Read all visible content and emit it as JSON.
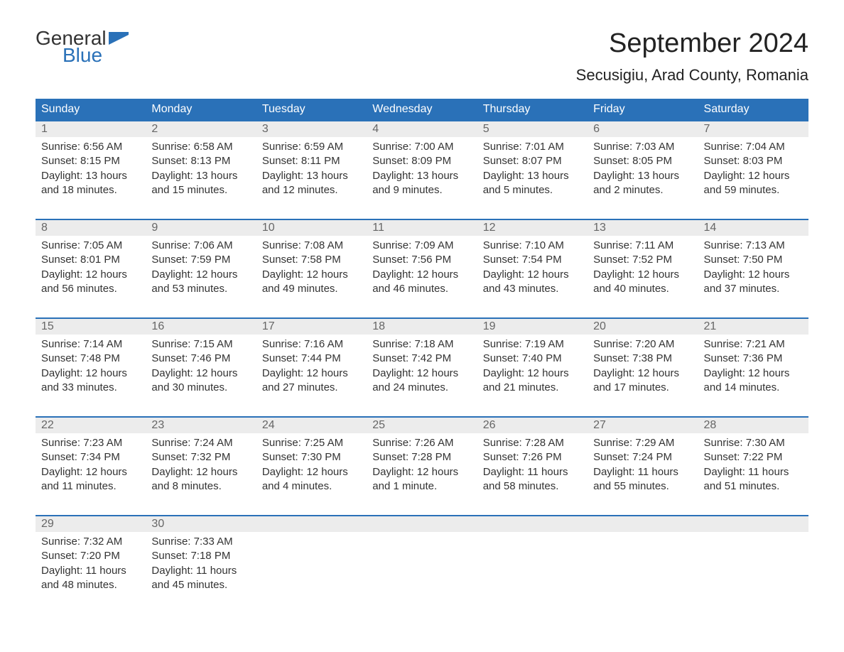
{
  "logo": {
    "general": "General",
    "blue": "Blue"
  },
  "title": "September 2024",
  "location": "Secusigiu, Arad County, Romania",
  "colors": {
    "header_bg": "#2a71b8",
    "header_text": "#ffffff",
    "daynum_bg": "#ececec",
    "daynum_text": "#666666",
    "body_text": "#333333",
    "week_border": "#2a71b8",
    "logo_blue": "#2a71b8"
  },
  "day_headers": [
    "Sunday",
    "Monday",
    "Tuesday",
    "Wednesday",
    "Thursday",
    "Friday",
    "Saturday"
  ],
  "weeks": [
    [
      {
        "n": "1",
        "sr": "6:56 AM",
        "ss": "8:15 PM",
        "dl": "13 hours and 18 minutes."
      },
      {
        "n": "2",
        "sr": "6:58 AM",
        "ss": "8:13 PM",
        "dl": "13 hours and 15 minutes."
      },
      {
        "n": "3",
        "sr": "6:59 AM",
        "ss": "8:11 PM",
        "dl": "13 hours and 12 minutes."
      },
      {
        "n": "4",
        "sr": "7:00 AM",
        "ss": "8:09 PM",
        "dl": "13 hours and 9 minutes."
      },
      {
        "n": "5",
        "sr": "7:01 AM",
        "ss": "8:07 PM",
        "dl": "13 hours and 5 minutes."
      },
      {
        "n": "6",
        "sr": "7:03 AM",
        "ss": "8:05 PM",
        "dl": "13 hours and 2 minutes."
      },
      {
        "n": "7",
        "sr": "7:04 AM",
        "ss": "8:03 PM",
        "dl": "12 hours and 59 minutes."
      }
    ],
    [
      {
        "n": "8",
        "sr": "7:05 AM",
        "ss": "8:01 PM",
        "dl": "12 hours and 56 minutes."
      },
      {
        "n": "9",
        "sr": "7:06 AM",
        "ss": "7:59 PM",
        "dl": "12 hours and 53 minutes."
      },
      {
        "n": "10",
        "sr": "7:08 AM",
        "ss": "7:58 PM",
        "dl": "12 hours and 49 minutes."
      },
      {
        "n": "11",
        "sr": "7:09 AM",
        "ss": "7:56 PM",
        "dl": "12 hours and 46 minutes."
      },
      {
        "n": "12",
        "sr": "7:10 AM",
        "ss": "7:54 PM",
        "dl": "12 hours and 43 minutes."
      },
      {
        "n": "13",
        "sr": "7:11 AM",
        "ss": "7:52 PM",
        "dl": "12 hours and 40 minutes."
      },
      {
        "n": "14",
        "sr": "7:13 AM",
        "ss": "7:50 PM",
        "dl": "12 hours and 37 minutes."
      }
    ],
    [
      {
        "n": "15",
        "sr": "7:14 AM",
        "ss": "7:48 PM",
        "dl": "12 hours and 33 minutes."
      },
      {
        "n": "16",
        "sr": "7:15 AM",
        "ss": "7:46 PM",
        "dl": "12 hours and 30 minutes."
      },
      {
        "n": "17",
        "sr": "7:16 AM",
        "ss": "7:44 PM",
        "dl": "12 hours and 27 minutes."
      },
      {
        "n": "18",
        "sr": "7:18 AM",
        "ss": "7:42 PM",
        "dl": "12 hours and 24 minutes."
      },
      {
        "n": "19",
        "sr": "7:19 AM",
        "ss": "7:40 PM",
        "dl": "12 hours and 21 minutes."
      },
      {
        "n": "20",
        "sr": "7:20 AM",
        "ss": "7:38 PM",
        "dl": "12 hours and 17 minutes."
      },
      {
        "n": "21",
        "sr": "7:21 AM",
        "ss": "7:36 PM",
        "dl": "12 hours and 14 minutes."
      }
    ],
    [
      {
        "n": "22",
        "sr": "7:23 AM",
        "ss": "7:34 PM",
        "dl": "12 hours and 11 minutes."
      },
      {
        "n": "23",
        "sr": "7:24 AM",
        "ss": "7:32 PM",
        "dl": "12 hours and 8 minutes."
      },
      {
        "n": "24",
        "sr": "7:25 AM",
        "ss": "7:30 PM",
        "dl": "12 hours and 4 minutes."
      },
      {
        "n": "25",
        "sr": "7:26 AM",
        "ss": "7:28 PM",
        "dl": "12 hours and 1 minute."
      },
      {
        "n": "26",
        "sr": "7:28 AM",
        "ss": "7:26 PM",
        "dl": "11 hours and 58 minutes."
      },
      {
        "n": "27",
        "sr": "7:29 AM",
        "ss": "7:24 PM",
        "dl": "11 hours and 55 minutes."
      },
      {
        "n": "28",
        "sr": "7:30 AM",
        "ss": "7:22 PM",
        "dl": "11 hours and 51 minutes."
      }
    ],
    [
      {
        "n": "29",
        "sr": "7:32 AM",
        "ss": "7:20 PM",
        "dl": "11 hours and 48 minutes."
      },
      {
        "n": "30",
        "sr": "7:33 AM",
        "ss": "7:18 PM",
        "dl": "11 hours and 45 minutes."
      },
      null,
      null,
      null,
      null,
      null
    ]
  ],
  "labels": {
    "sunrise": "Sunrise: ",
    "sunset": "Sunset: ",
    "daylight": "Daylight: "
  }
}
